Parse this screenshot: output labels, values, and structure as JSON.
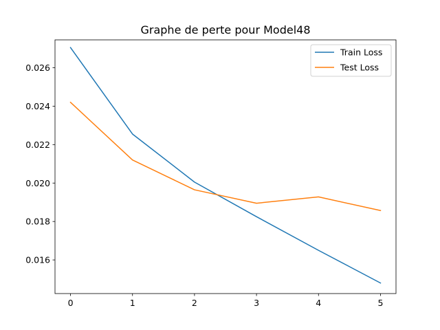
{
  "chart_data": {
    "type": "line",
    "title": "Graphe de perte pour Model48",
    "xlabel": "",
    "ylabel": "",
    "x": [
      0,
      1,
      2,
      3,
      4,
      5
    ],
    "xticks": [
      "0",
      "1",
      "2",
      "3",
      "4",
      "5"
    ],
    "yticks": [
      "0.016",
      "0.018",
      "0.020",
      "0.022",
      "0.024",
      "0.026"
    ],
    "xlim": [
      -0.25,
      5.25
    ],
    "ylim": [
      0.01425,
      0.02745
    ],
    "grid": false,
    "legend_position": "top-right",
    "series": [
      {
        "name": "Train Loss",
        "color": "#1f77b4",
        "values": [
          0.02705,
          0.02255,
          0.02005,
          0.01825,
          0.0165,
          0.0148
        ]
      },
      {
        "name": "Test Loss",
        "color": "#ff7f0e",
        "values": [
          0.0242,
          0.0212,
          0.01965,
          0.01895,
          0.01928,
          0.01857
        ]
      }
    ]
  }
}
